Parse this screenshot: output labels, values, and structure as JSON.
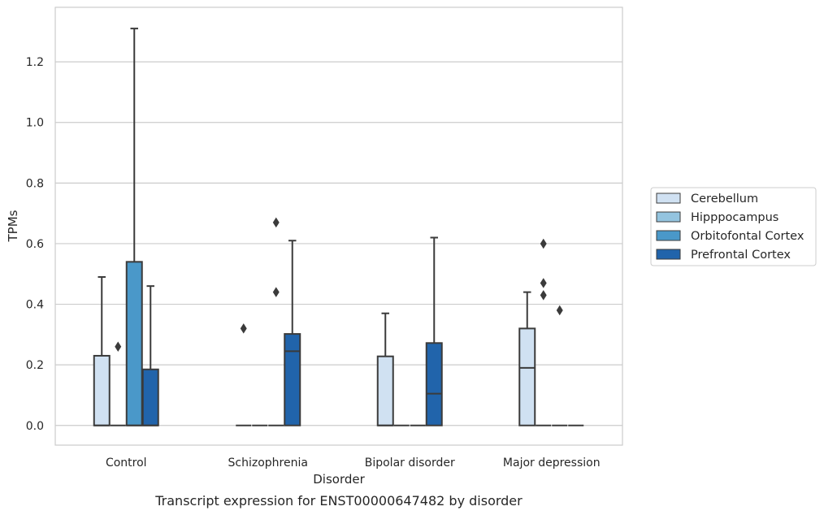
{
  "chart_data": {
    "type": "box",
    "xlabel": "Disorder",
    "ylabel": "TPMs",
    "caption": "Transcript expression for ENST00000647482 by disorder",
    "ylim": [
      -0.065,
      1.38
    ],
    "yticks": [
      0.0,
      0.2,
      0.4,
      0.6,
      0.8,
      1.0,
      1.2
    ],
    "ytick_labels": [
      "0.0",
      "0.2",
      "0.4",
      "0.6",
      "0.8",
      "1.0",
      "1.2"
    ],
    "grid": "horizontal",
    "legend_placement": "right, outside plot",
    "categories": [
      "Control",
      "Schizophrenia",
      "Bipolar disorder",
      "Major depression"
    ],
    "series": [
      {
        "name": "Cerebellum",
        "color": "#d0e1f2",
        "boxes": [
          {
            "q1": 0.0,
            "median": 0.0,
            "q3": 0.23,
            "whisker_low": 0.0,
            "whisker_high": 0.49,
            "outliers": []
          },
          {
            "q1": 0.0,
            "median": 0.0,
            "q3": 0.0,
            "whisker_low": 0.0,
            "whisker_high": 0.0,
            "outliers": [
              0.32
            ]
          },
          {
            "q1": 0.0,
            "median": 0.0,
            "q3": 0.228,
            "whisker_low": 0.0,
            "whisker_high": 0.37,
            "outliers": []
          },
          {
            "q1": 0.0,
            "median": 0.19,
            "q3": 0.32,
            "whisker_low": 0.0,
            "whisker_high": 0.44,
            "outliers": []
          }
        ]
      },
      {
        "name": "Hipppocampus",
        "color": "#94c4df",
        "boxes": [
          {
            "q1": 0.0,
            "median": 0.0,
            "q3": 0.0,
            "whisker_low": 0.0,
            "whisker_high": 0.0,
            "outliers": [
              0.26
            ]
          },
          {
            "q1": 0.0,
            "median": 0.0,
            "q3": 0.0,
            "whisker_low": 0.0,
            "whisker_high": 0.0,
            "outliers": []
          },
          {
            "q1": 0.0,
            "median": 0.0,
            "q3": 0.0,
            "whisker_low": 0.0,
            "whisker_high": 0.0,
            "outliers": []
          },
          {
            "q1": 0.0,
            "median": 0.0,
            "q3": 0.0,
            "whisker_low": 0.0,
            "whisker_high": 0.0,
            "outliers": [
              0.6,
              0.47,
              0.43
            ]
          }
        ]
      },
      {
        "name": "Orbitofontal Cortex",
        "color": "#4a98c9",
        "boxes": [
          {
            "q1": 0.0,
            "median": 0.0,
            "q3": 0.54,
            "whisker_low": 0.0,
            "whisker_high": 1.31,
            "outliers": []
          },
          {
            "q1": 0.0,
            "median": 0.0,
            "q3": 0.0,
            "whisker_low": 0.0,
            "whisker_high": 0.0,
            "outliers": [
              0.67,
              0.44
            ]
          },
          {
            "q1": 0.0,
            "median": 0.0,
            "q3": 0.0,
            "whisker_low": 0.0,
            "whisker_high": 0.0,
            "outliers": []
          },
          {
            "q1": 0.0,
            "median": 0.0,
            "q3": 0.0,
            "whisker_low": 0.0,
            "whisker_high": 0.0,
            "outliers": [
              0.38
            ]
          }
        ]
      },
      {
        "name": "Prefrontal Cortex",
        "color": "#2164ab",
        "boxes": [
          {
            "q1": 0.0,
            "median": 0.0,
            "q3": 0.185,
            "whisker_low": 0.0,
            "whisker_high": 0.46,
            "outliers": []
          },
          {
            "q1": 0.0,
            "median": 0.245,
            "q3": 0.302,
            "whisker_low": 0.0,
            "whisker_high": 0.61,
            "outliers": []
          },
          {
            "q1": 0.0,
            "median": 0.105,
            "q3": 0.272,
            "whisker_low": 0.0,
            "whisker_high": 0.62,
            "outliers": []
          },
          {
            "q1": 0.0,
            "median": 0.0,
            "q3": 0.0,
            "whisker_low": 0.0,
            "whisker_high": 0.0,
            "outliers": []
          }
        ]
      }
    ]
  }
}
